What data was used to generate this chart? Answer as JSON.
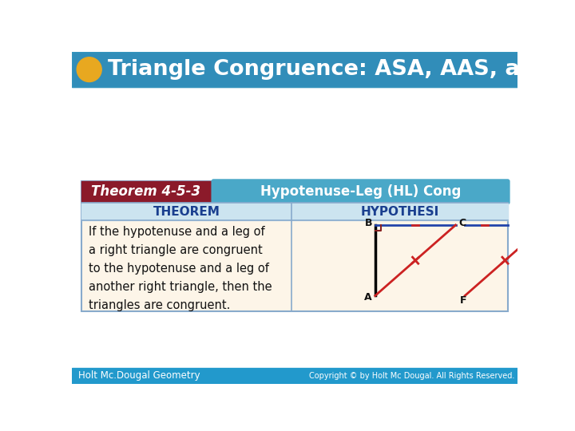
{
  "title": "Triangle Congruence: ASA, AAS, and HL",
  "title_color": "#FFFFFF",
  "slide_bg": "#FFFFFF",
  "header_bg": "#3399bb",
  "footer_bg": "#2299cc",
  "footer_left": "Holt Mc.Dougal Geometry",
  "footer_right": "Copyright © by Holt Mc Dougal. All Rights Reserved.",
  "circle_color": "#e8a820",
  "theorem_label_bg": "#8b1a2a",
  "theorem_label_text": "Theorem 4-5-3",
  "theorem_header_bg": "#4aa8c8",
  "theorem_header_text": "Hypotenuse-Leg (HL) Cong",
  "col_header_theorem": "THEOREM",
  "col_header_hypothesis": "HYPOTHESI",
  "theorem_text": "If the hypotenuse and a leg of\na right triangle are congruent\nto the hypotenuse and a leg of\nanother right triangle, then the\ntriangles are congruent.",
  "table_bg": "#fdf5e8",
  "table_border": "#88aacc",
  "col_header_bg": "#cce4f0",
  "col_header_color": "#1a3f8f",
  "divider_color": "#88aacc",
  "black_line": "#000000",
  "blue_line": "#2244aa",
  "red_line": "#cc2222",
  "right_angle_color": "#882222",
  "tick_color": "#cc2222",
  "label_color": "#111111"
}
